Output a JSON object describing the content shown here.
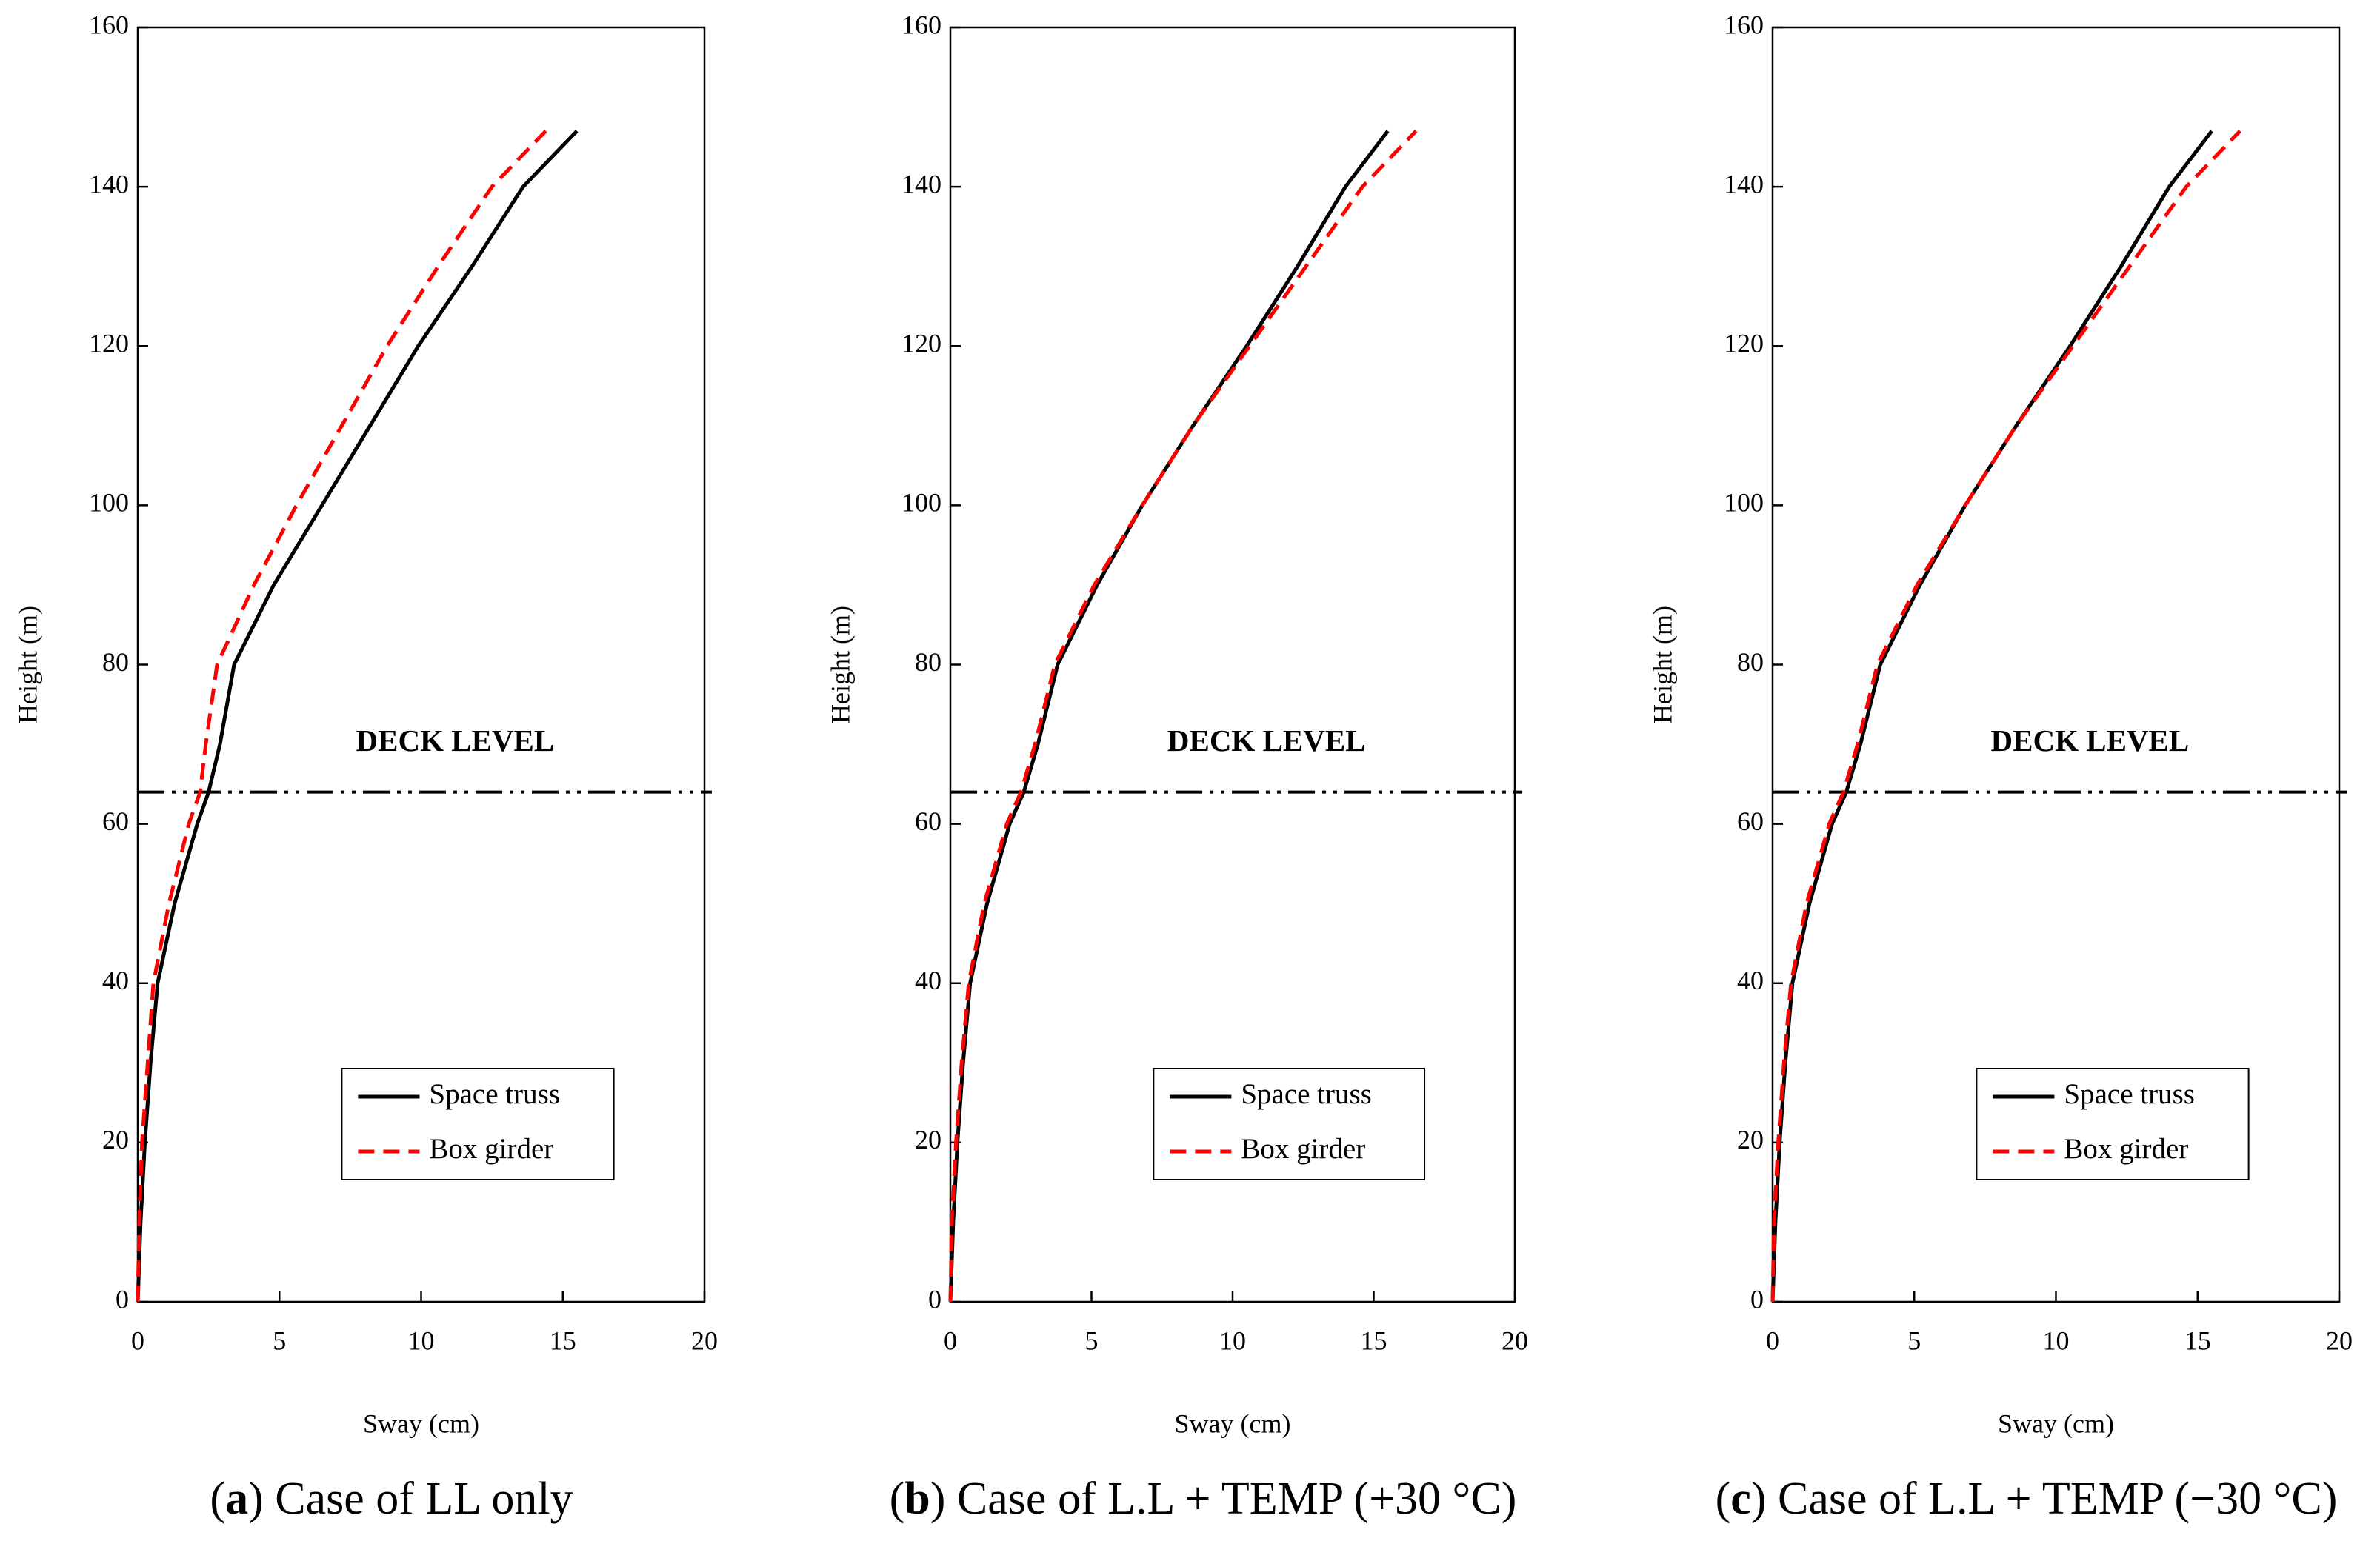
{
  "chart_data": [
    {
      "type": "line",
      "xlabel": "Sway (cm)",
      "ylabel": "Height (m)",
      "caption_open": "(",
      "caption_label": "a",
      "caption_text": ") Case of LL only",
      "annotation": "DECK LEVEL",
      "deck_level": 64,
      "xlim": [
        0,
        20
      ],
      "xticks": [
        0,
        5,
        10,
        15,
        20
      ],
      "ylim": [
        0,
        160
      ],
      "yticks": [
        0,
        20,
        40,
        60,
        80,
        100,
        120,
        140,
        160
      ],
      "legend": "lower right",
      "series": [
        {
          "name": "Space truss",
          "color": "#000000",
          "dash": "solid",
          "x": [
            0,
            0.1,
            0.25,
            0.45,
            0.7,
            1.3,
            2.1,
            2.5,
            2.9,
            3.4,
            4.8,
            6.5,
            8.2,
            9.9,
            11.8,
            13.6,
            15.5
          ],
          "values": [
            0,
            10,
            20,
            30,
            40,
            50,
            60,
            64,
            70,
            80,
            90,
            100,
            110,
            120,
            130,
            140,
            147
          ]
        },
        {
          "name": "Box girder",
          "color": "#ff0000",
          "dash": "dashed",
          "x": [
            0,
            0.05,
            0.15,
            0.35,
            0.55,
            1.1,
            1.8,
            2.2,
            2.4,
            2.8,
            4.1,
            5.6,
            7.2,
            8.8,
            10.6,
            12.5,
            14.4
          ],
          "values": [
            0,
            10,
            20,
            30,
            40,
            50,
            60,
            64,
            70,
            80,
            90,
            100,
            110,
            120,
            130,
            140,
            147
          ]
        }
      ]
    },
    {
      "type": "line",
      "xlabel": "Sway (cm)",
      "ylabel": "Height (m)",
      "caption_open": "(",
      "caption_label": "b",
      "caption_text": ") Case of L.L + TEMP (+30 °C)",
      "annotation": "DECK LEVEL",
      "deck_level": 64,
      "xlim": [
        0,
        20
      ],
      "xticks": [
        0,
        5,
        10,
        15,
        20
      ],
      "ylim": [
        0,
        160
      ],
      "yticks": [
        0,
        20,
        40,
        60,
        80,
        100,
        120,
        140,
        160
      ],
      "legend": "lower right",
      "series": [
        {
          "name": "Space truss",
          "color": "#000000",
          "dash": "solid",
          "x": [
            0,
            0.1,
            0.25,
            0.45,
            0.7,
            1.3,
            2.1,
            2.6,
            3.1,
            3.8,
            5.2,
            6.8,
            8.6,
            10.5,
            12.3,
            14.0,
            15.5
          ],
          "values": [
            0,
            10,
            20,
            30,
            40,
            50,
            60,
            64,
            70,
            80,
            90,
            100,
            110,
            120,
            130,
            140,
            147
          ]
        },
        {
          "name": "Box girder",
          "color": "#ff0000",
          "dash": "dashed",
          "x": [
            0,
            0.05,
            0.2,
            0.4,
            0.65,
            1.2,
            2.0,
            2.5,
            3.0,
            3.7,
            5.1,
            6.8,
            8.6,
            10.6,
            12.6,
            14.6,
            16.5
          ],
          "values": [
            0,
            10,
            20,
            30,
            40,
            50,
            60,
            64,
            70,
            80,
            90,
            100,
            110,
            120,
            130,
            140,
            147
          ]
        }
      ]
    },
    {
      "type": "line",
      "xlabel": "Sway (cm)",
      "ylabel": "Height (m)",
      "caption_open": "(",
      "caption_label": "c",
      "caption_text": ") Case of L.L + TEMP (−30 °C)",
      "annotation": "DECK LEVEL",
      "deck_level": 64,
      "xlim": [
        0,
        20
      ],
      "xticks": [
        0,
        5,
        10,
        15,
        20
      ],
      "ylim": [
        0,
        160
      ],
      "yticks": [
        0,
        20,
        40,
        60,
        80,
        100,
        120,
        140,
        160
      ],
      "legend": "lower right",
      "series": [
        {
          "name": "Space truss",
          "color": "#000000",
          "dash": "solid",
          "x": [
            0,
            0.1,
            0.25,
            0.45,
            0.7,
            1.3,
            2.1,
            2.6,
            3.1,
            3.8,
            5.2,
            6.8,
            8.6,
            10.5,
            12.3,
            14.0,
            15.5
          ],
          "values": [
            0,
            10,
            20,
            30,
            40,
            50,
            60,
            64,
            70,
            80,
            90,
            100,
            110,
            120,
            130,
            140,
            147
          ]
        },
        {
          "name": "Box girder",
          "color": "#ff0000",
          "dash": "dashed",
          "x": [
            0,
            0.05,
            0.2,
            0.4,
            0.65,
            1.2,
            2.0,
            2.5,
            3.0,
            3.7,
            5.1,
            6.8,
            8.6,
            10.6,
            12.6,
            14.6,
            16.5
          ],
          "values": [
            0,
            10,
            20,
            30,
            40,
            50,
            60,
            64,
            70,
            80,
            90,
            100,
            110,
            120,
            130,
            140,
            147
          ]
        }
      ]
    }
  ]
}
